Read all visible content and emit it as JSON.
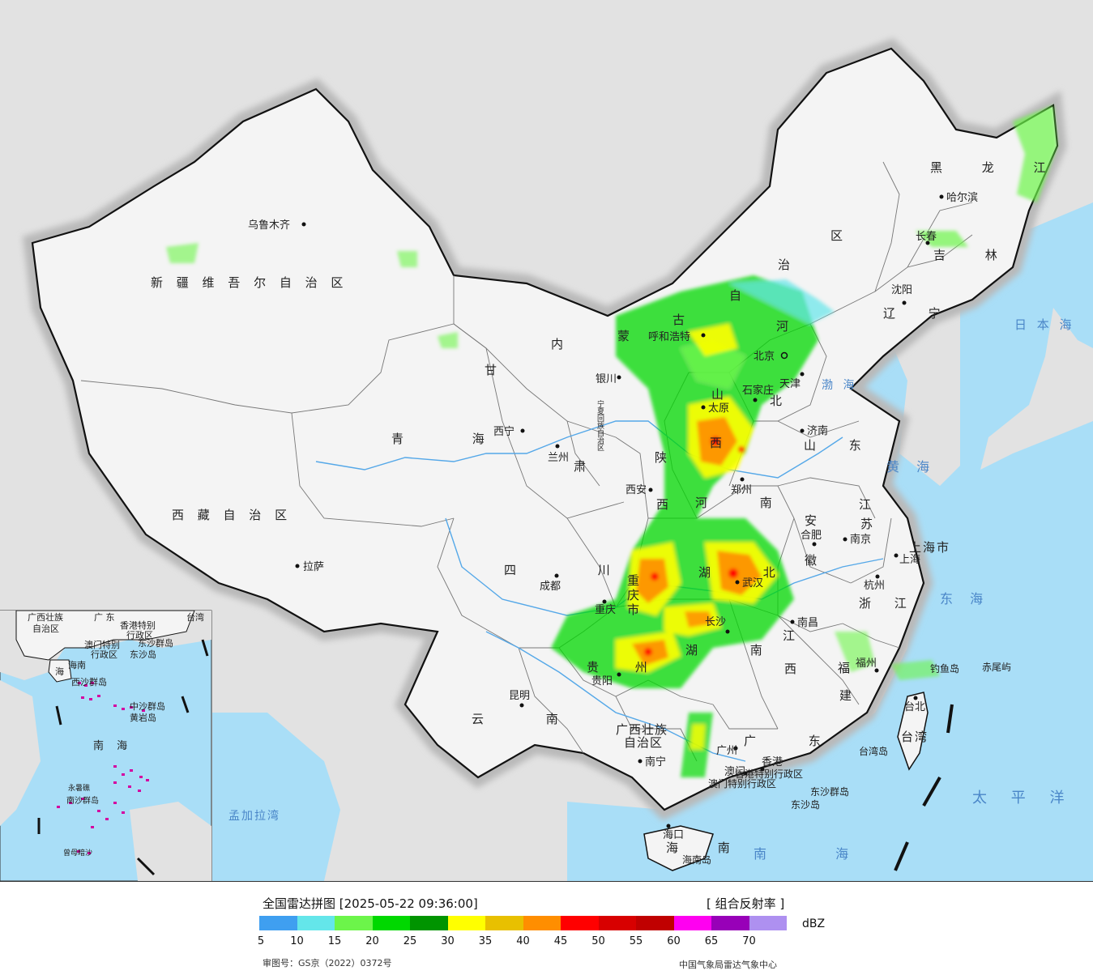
{
  "legend": {
    "title": "全国雷达拼图 [2025-05-22 09:36:00]",
    "product": "[ 组合反射率 ]",
    "unit": "dBZ",
    "ticks": [
      "5",
      "10",
      "15",
      "20",
      "25",
      "30",
      "35",
      "40",
      "45",
      "50",
      "55",
      "60",
      "65",
      "70"
    ],
    "colors": [
      "#3f9ff0",
      "#64e6ea",
      "#6cf54a",
      "#00d800",
      "#009400",
      "#ffff00",
      "#e8c000",
      "#ff8e00",
      "#ff0000",
      "#d80000",
      "#c00000",
      "#ff00f0",
      "#9800b8",
      "#ae90f0"
    ],
    "approval": "审图号：GS京（2022）0372号",
    "agency": "中国气象局雷达气象中心"
  },
  "map": {
    "provinces": [
      {
        "name": "新 疆 维 吾 尔 自 治 区"
      },
      {
        "name": "西 藏 自 治 区"
      },
      {
        "name": "青 海"
      },
      {
        "name": "甘"
      },
      {
        "name": "肃"
      },
      {
        "name": "内"
      },
      {
        "name": "蒙"
      },
      {
        "name": "古"
      },
      {
        "name": "自"
      },
      {
        "name": "治"
      },
      {
        "name": "区"
      },
      {
        "name": "黑 龙 江"
      },
      {
        "name": "吉 林"
      },
      {
        "name": "辽 宁"
      },
      {
        "name": "河"
      },
      {
        "name": "北"
      },
      {
        "name": "山"
      },
      {
        "name": "西"
      },
      {
        "name": "陕"
      },
      {
        "name": "西"
      },
      {
        "name": "山 东"
      },
      {
        "name": "河 南"
      },
      {
        "name": "江"
      },
      {
        "name": "苏"
      },
      {
        "name": "安"
      },
      {
        "name": "徽"
      },
      {
        "name": "上海市"
      },
      {
        "name": "浙 江"
      },
      {
        "name": "四 川"
      },
      {
        "name": "重"
      },
      {
        "name": "庆"
      },
      {
        "name": "市"
      },
      {
        "name": "湖 北"
      },
      {
        "name": "湖 南"
      },
      {
        "name": "江"
      },
      {
        "name": "西"
      },
      {
        "name": "福"
      },
      {
        "name": "建"
      },
      {
        "name": "贵 州"
      },
      {
        "name": "云 南"
      },
      {
        "name": "广西壮族"
      },
      {
        "name": "自治区"
      },
      {
        "name": "广 东"
      },
      {
        "name": "海 南"
      },
      {
        "name": "台湾"
      },
      {
        "name": "宁夏回族自治区"
      },
      {
        "name": "香港特别行政区"
      },
      {
        "name": "澳门特别行政区"
      },
      {
        "name": "天津"
      },
      {
        "name": "北京"
      }
    ],
    "cities": [
      {
        "name": "乌鲁木齐"
      },
      {
        "name": "拉萨"
      },
      {
        "name": "西宁"
      },
      {
        "name": "兰州"
      },
      {
        "name": "银川"
      },
      {
        "name": "呼和浩特"
      },
      {
        "name": "北京"
      },
      {
        "name": "天津"
      },
      {
        "name": "石家庄"
      },
      {
        "name": "太原"
      },
      {
        "name": "济南"
      },
      {
        "name": "郑州"
      },
      {
        "name": "西安"
      },
      {
        "name": "成都"
      },
      {
        "name": "重庆"
      },
      {
        "name": "武汉"
      },
      {
        "name": "长沙"
      },
      {
        "name": "南昌"
      },
      {
        "name": "合肥"
      },
      {
        "name": "南京"
      },
      {
        "name": "上海"
      },
      {
        "name": "杭州"
      },
      {
        "name": "福州"
      },
      {
        "name": "台北"
      },
      {
        "name": "贵阳"
      },
      {
        "name": "昆明"
      },
      {
        "name": "南宁"
      },
      {
        "name": "广州"
      },
      {
        "name": "香港"
      },
      {
        "name": "澳门"
      },
      {
        "name": "海口"
      },
      {
        "name": "哈尔滨"
      },
      {
        "name": "长春"
      },
      {
        "name": "沈阳"
      }
    ],
    "seas": [
      {
        "name": "日 本 海"
      },
      {
        "name": "渤 海"
      },
      {
        "name": "黄 海"
      },
      {
        "name": "东 海"
      },
      {
        "name": "太 平 洋"
      },
      {
        "name": "南 海"
      },
      {
        "name": "孟加拉湾"
      }
    ],
    "islands": [
      {
        "name": "钓鱼岛"
      },
      {
        "name": "赤尾屿"
      },
      {
        "name": "台湾岛"
      },
      {
        "name": "东沙群岛"
      },
      {
        "name": "东沙岛"
      },
      {
        "name": "海南岛"
      }
    ],
    "inset": {
      "labels": [
        "广西壮族",
        "自治区",
        "广 东",
        "海南",
        "海",
        "香港特别",
        "行政区",
        "澳门特别",
        "行政区",
        "东沙群岛",
        "东沙岛",
        "西沙群岛",
        "中沙群岛",
        "黄岩岛",
        "南 海",
        "南沙群岛",
        "永暑礁",
        "曾母暗沙",
        "台湾",
        "南 海"
      ]
    }
  }
}
